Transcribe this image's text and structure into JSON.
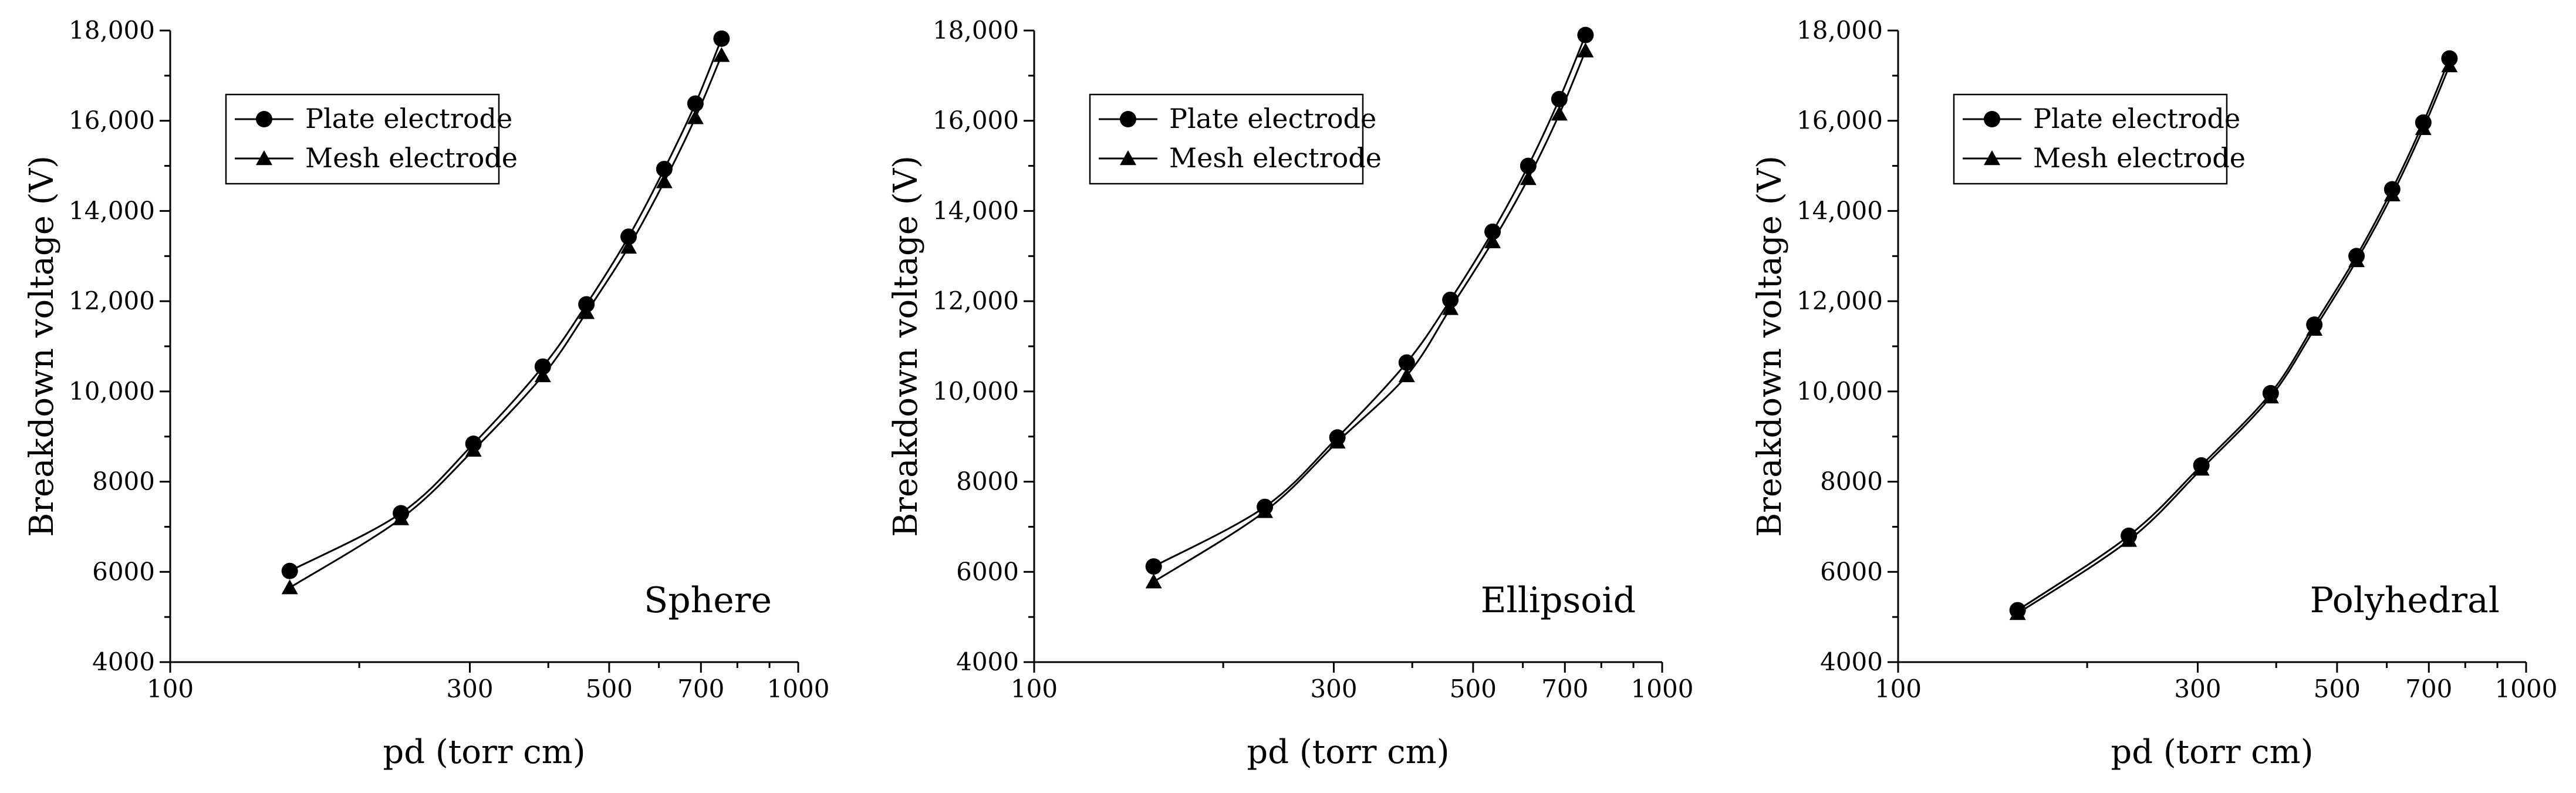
{
  "figure": {
    "colors": {
      "line": "#000000",
      "background": "#ffffff"
    }
  },
  "chart_data": [
    {
      "type": "line",
      "panel_label": "Sphere",
      "xlabel": "pd (torr cm)",
      "ylabel": "Breakdown voltage (V)",
      "xscale": "log",
      "xlim": [
        100,
        1000
      ],
      "ylim": [
        4000,
        18000
      ],
      "xticks": [
        100,
        300,
        500,
        700,
        1000
      ],
      "xtick_labels": [
        "100",
        "300",
        "500",
        "700",
        "1000"
      ],
      "yticks": [
        4000,
        6000,
        8000,
        10000,
        12000,
        14000,
        16000,
        18000
      ],
      "ytick_labels": [
        "4000",
        "6000",
        "8000",
        "10,000",
        "12,000",
        "14,000",
        "16,000",
        "18,000"
      ],
      "legend": "top-left",
      "series": [
        {
          "name": "Plate electrode",
          "marker": "circle",
          "x": [
            155,
            233,
            304,
            392,
            460,
            537,
            612,
            686,
            755
          ],
          "y": [
            6020,
            7300,
            8840,
            10550,
            11930,
            13430,
            14930,
            16380,
            17820
          ]
        },
        {
          "name": "Mesh electrode",
          "marker": "triangle",
          "x": [
            155,
            233,
            304,
            392,
            460,
            537,
            612,
            686,
            755
          ],
          "y": [
            5650,
            7180,
            8700,
            10350,
            11750,
            13200,
            14650,
            16070,
            17450
          ]
        }
      ]
    },
    {
      "type": "line",
      "panel_label": "Ellipsoid",
      "xlabel": "pd (torr cm)",
      "ylabel": "Breakdown voltage (V)",
      "xscale": "log",
      "xlim": [
        100,
        1000
      ],
      "ylim": [
        4000,
        18000
      ],
      "xticks": [
        100,
        300,
        500,
        700,
        1000
      ],
      "xtick_labels": [
        "100",
        "300",
        "500",
        "700",
        "1000"
      ],
      "yticks": [
        4000,
        6000,
        8000,
        10000,
        12000,
        14000,
        16000,
        18000
      ],
      "ytick_labels": [
        "4000",
        "6000",
        "8000",
        "10,000",
        "12,000",
        "14,000",
        "16,000",
        "18,000"
      ],
      "legend": "top-left",
      "series": [
        {
          "name": "Plate electrode",
          "marker": "circle",
          "x": [
            155,
            233,
            304,
            392,
            460,
            537,
            612,
            686,
            755
          ],
          "y": [
            6120,
            7440,
            8980,
            10640,
            12030,
            13540,
            15000,
            16480,
            17900
          ]
        },
        {
          "name": "Mesh electrode",
          "marker": "triangle",
          "x": [
            155,
            233,
            304,
            392,
            460,
            537,
            612,
            686,
            755
          ],
          "y": [
            5780,
            7340,
            8880,
            10350,
            11840,
            13320,
            14720,
            16150,
            17550
          ]
        }
      ]
    },
    {
      "type": "line",
      "panel_label": "Polyhedral",
      "xlabel": "pd (torr cm)",
      "ylabel": "Breakdown voltage (V)",
      "xscale": "log",
      "xlim": [
        100,
        1000
      ],
      "ylim": [
        4000,
        18000
      ],
      "xticks": [
        100,
        300,
        500,
        700,
        1000
      ],
      "xtick_labels": [
        "100",
        "300",
        "500",
        "700",
        "1000"
      ],
      "yticks": [
        4000,
        6000,
        8000,
        10000,
        12000,
        14000,
        16000,
        18000
      ],
      "ytick_labels": [
        "4000",
        "6000",
        "8000",
        "10,000",
        "12,000",
        "14,000",
        "16,000",
        "18,000"
      ],
      "legend": "top-left",
      "series": [
        {
          "name": "Plate electrode",
          "marker": "circle",
          "x": [
            155,
            233,
            304,
            392,
            460,
            537,
            612,
            686,
            755
          ],
          "y": [
            5150,
            6800,
            8360,
            9960,
            11480,
            13000,
            14480,
            15960,
            17380
          ]
        },
        {
          "name": "Mesh electrode",
          "marker": "triangle",
          "x": [
            155,
            233,
            304,
            392,
            460,
            537,
            612,
            686,
            755
          ],
          "y": [
            5080,
            6700,
            8280,
            9880,
            11380,
            12900,
            14360,
            15830,
            17220
          ]
        }
      ]
    }
  ]
}
